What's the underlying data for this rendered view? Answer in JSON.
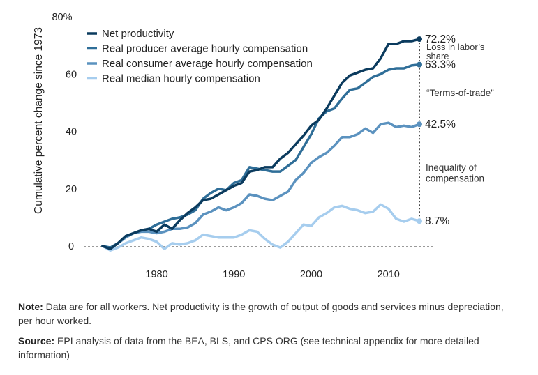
{
  "chart_data": {
    "type": "line",
    "ylabel": "Cumulative percent change since 1973",
    "xlabel": "",
    "xlim": [
      1973,
      2014
    ],
    "ylim": [
      0,
      80
    ],
    "x_ticks": [
      "1980",
      "1990",
      "2000",
      "2010"
    ],
    "y_ticks": [
      "0",
      "20",
      "40",
      "60",
      "80%"
    ],
    "grid": false,
    "legend_position": "top-left",
    "x": [
      1973,
      1974,
      1975,
      1976,
      1977,
      1978,
      1979,
      1980,
      1981,
      1982,
      1983,
      1984,
      1985,
      1986,
      1987,
      1988,
      1989,
      1990,
      1991,
      1992,
      1993,
      1994,
      1995,
      1996,
      1997,
      1998,
      1999,
      2000,
      2001,
      2002,
      2003,
      2004,
      2005,
      2006,
      2007,
      2008,
      2009,
      2010,
      2011,
      2012,
      2013,
      2014
    ],
    "series": [
      {
        "name": "Net productivity",
        "color": "#0b3b5e",
        "values": [
          0,
          -1,
          1,
          3.5,
          4.5,
          5.5,
          6,
          5,
          7.5,
          6,
          9,
          11.5,
          13.5,
          16,
          16.5,
          18,
          19.5,
          21,
          22,
          26,
          26.5,
          27.5,
          27.5,
          30.5,
          32.5,
          35.5,
          38.5,
          42,
          44,
          48,
          52.5,
          57,
          59.5,
          60.5,
          61.5,
          62,
          65.5,
          70.5,
          70.5,
          71.5,
          71.5,
          72.2
        ]
      },
      {
        "name": "Real producer average hourly compensation",
        "color": "#2f6e98",
        "values": [
          0,
          -0.5,
          1,
          3.5,
          4.5,
          5.5,
          6,
          7.5,
          8.5,
          9.5,
          10,
          11,
          12.5,
          16.5,
          18.5,
          20,
          19.5,
          22,
          23,
          27.5,
          27,
          26.5,
          26,
          26,
          28,
          30,
          34.5,
          39,
          44.5,
          47,
          48,
          51.5,
          54.5,
          55,
          57,
          59,
          60,
          61.5,
          62,
          62,
          63,
          63.3
        ]
      },
      {
        "name": "Real consumer average hourly compensation",
        "color": "#5b92bf",
        "values": [
          0,
          -1,
          1,
          3,
          4.5,
          5,
          5,
          4.5,
          5,
          6,
          6,
          6.5,
          8,
          11,
          12,
          13.5,
          12.5,
          13.5,
          15,
          18,
          17.5,
          16.5,
          16,
          17.5,
          19,
          23,
          25.5,
          29,
          31,
          32.5,
          35,
          38,
          38,
          39,
          41,
          39.5,
          42.5,
          43,
          41.5,
          42,
          41.5,
          42.5
        ]
      },
      {
        "name": "Real median hourly compensation",
        "color": "#a6cdee",
        "values": [
          0,
          -1.5,
          -0.5,
          1,
          2,
          3,
          2.5,
          1.5,
          -1,
          1,
          0.5,
          1,
          2,
          4,
          3.5,
          3,
          3,
          3,
          4,
          5.5,
          5,
          2.5,
          0.5,
          -0.5,
          1.5,
          4.5,
          7.5,
          7,
          10,
          11.5,
          13.5,
          14,
          13,
          12.5,
          11.5,
          12,
          14.5,
          13,
          9.5,
          8.5,
          9.5,
          8.7
        ]
      }
    ],
    "end_labels": [
      "72.2%",
      "63.3%",
      "42.5%",
      "8.7%"
    ],
    "annotations": [
      "Loss in labor’s share",
      "“Terms-of-trade”",
      "Inequality of compensation"
    ]
  },
  "notes": {
    "note_label": "Note:",
    "note_text": " Data are for all workers. Net productivity is the growth of output of goods and services minus depreciation, per hour worked.",
    "source_label": "Source:",
    "source_text": " EPI analysis of data from the BEA, BLS, and CPS ORG (see technical appendix for more detailed information)"
  }
}
